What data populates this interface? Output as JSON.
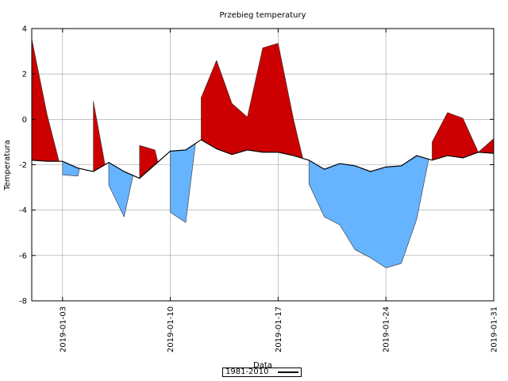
{
  "chart_data": {
    "type": "area",
    "title": "Przebieg temperatury",
    "xlabel": "Data",
    "ylabel": "Temperatura",
    "ylim": [
      -8,
      4
    ],
    "yticks": [
      4,
      2,
      0,
      -2,
      -4,
      -6,
      -8
    ],
    "xlim": [
      "2019-01-01",
      "2019-01-31"
    ],
    "xticks": [
      "2019-01-03",
      "2019-01-10",
      "2019-01-17",
      "2019-01-24",
      "2019-01-31"
    ],
    "grid": true,
    "legend": {
      "placement": "bottom-center",
      "entries": [
        "1981-2010"
      ]
    },
    "colors": {
      "above": "#cc0000",
      "below": "#66b3ff",
      "line": "#000000"
    },
    "x": [
      "2019-01-01",
      "2019-01-02",
      "2019-01-03",
      "2019-01-04",
      "2019-01-05",
      "2019-01-06",
      "2019-01-07",
      "2019-01-08",
      "2019-01-09",
      "2019-01-10",
      "2019-01-11",
      "2019-01-12",
      "2019-01-13",
      "2019-01-14",
      "2019-01-15",
      "2019-01-16",
      "2019-01-17",
      "2019-01-18",
      "2019-01-19",
      "2019-01-20",
      "2019-01-21",
      "2019-01-22",
      "2019-01-23",
      "2019-01-24",
      "2019-01-25",
      "2019-01-26",
      "2019-01-27",
      "2019-01-28",
      "2019-01-29",
      "2019-01-30",
      "2019-01-31"
    ],
    "series": [
      {
        "values": [
          3.55,
          0.2,
          -2.45,
          -2.5,
          0.8,
          -2.9,
          -4.3,
          -1.15,
          -1.35,
          -4.1,
          -4.55,
          0.95,
          2.6,
          0.7,
          0.1,
          3.15,
          3.35,
          0.0,
          -2.85,
          -4.3,
          -4.65,
          -5.75,
          -6.1,
          -6.55,
          -6.35,
          -4.4,
          -1.0,
          0.3,
          0.05,
          -1.45,
          -0.85
        ]
      },
      {
        "name": "1981-2010",
        "values": [
          -1.8,
          -1.85,
          -1.85,
          -2.15,
          -2.3,
          -1.9,
          -2.3,
          -2.6,
          -2.0,
          -1.4,
          -1.35,
          -0.9,
          -1.3,
          -1.55,
          -1.35,
          -1.45,
          -1.45,
          -1.6,
          -1.8,
          -2.2,
          -1.95,
          -2.05,
          -2.3,
          -2.1,
          -2.05,
          -1.6,
          -1.8,
          -1.6,
          -1.7,
          -1.45,
          -1.5
        ]
      }
    ]
  }
}
